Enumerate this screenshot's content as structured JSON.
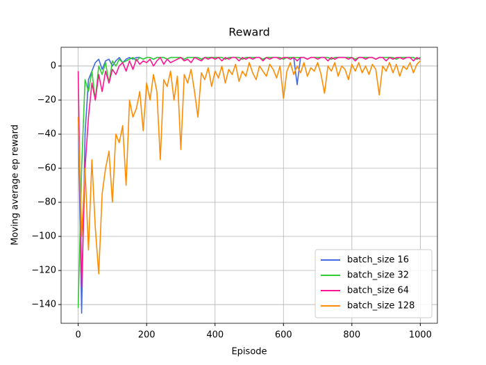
{
  "chart_data": {
    "type": "line",
    "title": "Reward",
    "xlabel": "Episode",
    "ylabel": "Moving average ep reward",
    "x": [
      0,
      10,
      20,
      30,
      40,
      50,
      60,
      70,
      80,
      90,
      100,
      110,
      120,
      130,
      140,
      150,
      160,
      170,
      180,
      190,
      200,
      210,
      220,
      230,
      240,
      250,
      260,
      270,
      280,
      290,
      300,
      310,
      320,
      330,
      340,
      350,
      360,
      370,
      380,
      390,
      400,
      410,
      420,
      430,
      440,
      450,
      460,
      470,
      480,
      490,
      500,
      510,
      520,
      530,
      540,
      550,
      560,
      570,
      580,
      590,
      600,
      610,
      620,
      630,
      640,
      650,
      660,
      670,
      680,
      690,
      700,
      710,
      720,
      730,
      740,
      750,
      760,
      770,
      780,
      790,
      800,
      810,
      820,
      830,
      840,
      850,
      860,
      870,
      880,
      890,
      900,
      910,
      920,
      930,
      940,
      950,
      960,
      970,
      980,
      990,
      1000
    ],
    "series": [
      {
        "name": "batch_size 16",
        "color": "#4169e1",
        "values": [
          -30,
          -145,
          -40,
          -8,
          -3,
          2,
          4,
          -2,
          3,
          4,
          0,
          3,
          5,
          2,
          4,
          5,
          4,
          5,
          5,
          4,
          5,
          5,
          4,
          5,
          5,
          5,
          4,
          5,
          5,
          5,
          5,
          4,
          5,
          5,
          5,
          5,
          4,
          5,
          5,
          5,
          5,
          5,
          5,
          4,
          5,
          5,
          5,
          5,
          4,
          5,
          5,
          5,
          5,
          5,
          4,
          5,
          5,
          5,
          5,
          5,
          4,
          5,
          5,
          5,
          -11,
          5,
          5,
          4,
          5,
          5,
          5,
          5,
          5,
          5,
          4,
          5,
          5,
          5,
          5,
          5,
          5,
          4,
          5,
          5,
          5,
          5,
          5,
          4,
          5,
          5,
          5,
          5,
          5,
          4,
          5,
          5,
          5,
          5,
          5,
          4,
          5
        ]
      },
      {
        "name": "batch_size 32",
        "color": "#32cd32",
        "values": [
          -142,
          -60,
          -8,
          -15,
          -3,
          -20,
          0,
          -5,
          2,
          -10,
          3,
          0,
          4,
          2,
          3,
          4,
          5,
          3,
          5,
          4,
          5,
          5,
          4,
          5,
          5,
          5,
          4,
          5,
          5,
          5,
          5,
          4,
          5,
          5,
          5,
          5,
          4,
          5,
          5,
          5,
          5,
          5,
          5,
          4,
          5,
          5,
          5,
          5,
          4,
          5,
          5,
          5,
          5,
          5,
          4,
          5,
          5,
          5,
          5,
          5,
          4,
          5,
          5,
          5,
          5,
          5,
          5,
          4,
          5,
          5,
          5,
          5,
          5,
          5,
          4,
          5,
          5,
          5,
          5,
          5,
          5,
          4,
          5,
          5,
          5,
          5,
          5,
          4,
          5,
          5,
          5,
          5,
          5,
          4,
          5,
          5,
          5,
          5,
          5,
          4,
          5
        ]
      },
      {
        "name": "batch_size 64",
        "color": "#ff1493",
        "values": [
          -3,
          -130,
          -60,
          -30,
          -10,
          -20,
          -5,
          -15,
          -3,
          -10,
          -2,
          -5,
          0,
          2,
          -3,
          3,
          -2,
          4,
          1,
          3,
          2,
          4,
          0,
          3,
          5,
          1,
          4,
          2,
          3,
          4,
          5,
          3,
          4,
          2,
          5,
          4,
          3,
          5,
          4,
          5,
          4,
          5,
          3,
          5,
          4,
          5,
          5,
          3,
          5,
          4,
          5,
          4,
          5,
          5,
          3,
          5,
          4,
          5,
          5,
          4,
          5,
          5,
          4,
          5,
          3,
          5,
          5,
          4,
          5,
          5,
          4,
          5,
          5,
          3,
          5,
          4,
          5,
          5,
          5,
          4,
          5,
          3,
          5,
          5,
          4,
          5,
          5,
          4,
          5,
          5,
          3,
          5,
          4,
          5,
          5,
          4,
          5,
          5,
          3,
          5,
          4
        ]
      },
      {
        "name": "batch_size 128",
        "color": "#ff8c00",
        "values": [
          -30,
          -100,
          -60,
          -108,
          -55,
          -95,
          -122,
          -75,
          -60,
          -50,
          -80,
          -40,
          -45,
          -35,
          -70,
          -20,
          -30,
          -25,
          -15,
          -38,
          -10,
          -20,
          -5,
          -15,
          -55,
          -8,
          -12,
          -3,
          -20,
          -6,
          -49,
          -5,
          -10,
          -2,
          -15,
          -30,
          -4,
          -8,
          -1,
          -12,
          -3,
          -7,
          0,
          -10,
          -2,
          -5,
          1,
          -9,
          -3,
          -6,
          2,
          -4,
          -8,
          0,
          -3,
          -6,
          1,
          -2,
          -7,
          0,
          -19,
          -3,
          2,
          -5,
          0,
          -4,
          2,
          -6,
          -1,
          -3,
          2,
          -5,
          -16,
          0,
          -3,
          2,
          -6,
          0,
          -2,
          -8,
          1,
          -3,
          2,
          -4,
          0,
          -5,
          1,
          -2,
          -17,
          0,
          -3,
          2,
          -4,
          1,
          -6,
          0,
          -2,
          2,
          -4,
          1,
          3
        ]
      }
    ],
    "xlim": [
      -50,
      1050
    ],
    "ylim": [
      -151,
      11
    ],
    "xticks": [
      0,
      200,
      400,
      600,
      800,
      1000
    ],
    "yticks": [
      {
        "value": -140,
        "label": "−140"
      },
      {
        "value": -120,
        "label": "−120"
      },
      {
        "value": -100,
        "label": "−100"
      },
      {
        "value": -80,
        "label": "−80"
      },
      {
        "value": -60,
        "label": "−60"
      },
      {
        "value": -40,
        "label": "−40"
      },
      {
        "value": -20,
        "label": "−20"
      },
      0
    ],
    "grid": true,
    "legend": "lower right"
  }
}
